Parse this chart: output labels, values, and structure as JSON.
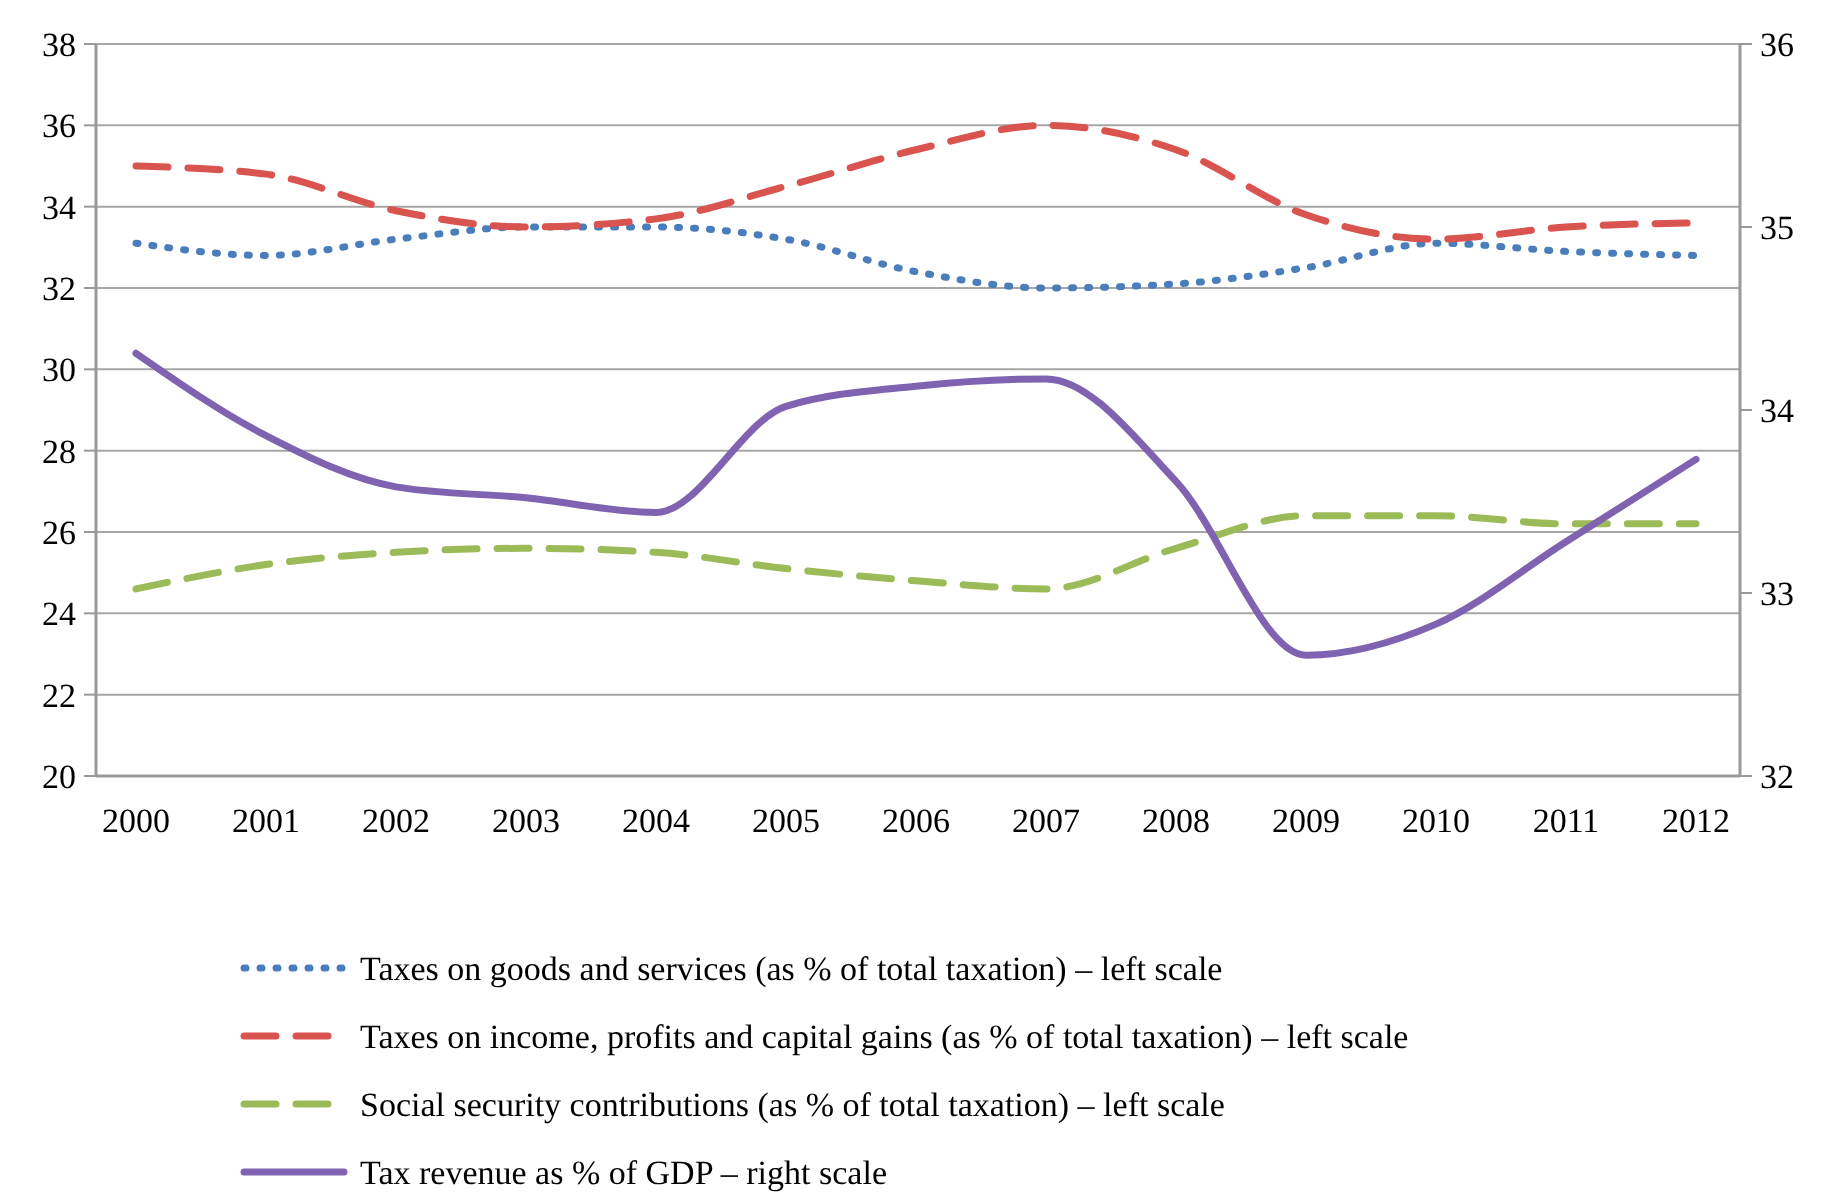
{
  "chart_data": {
    "type": "line",
    "categories": [
      "2000",
      "2001",
      "2002",
      "2003",
      "2004",
      "2005",
      "2006",
      "2007",
      "2008",
      "2009",
      "2010",
      "2011",
      "2012"
    ],
    "series": [
      {
        "name": "Taxes on goods and services  (as % of total taxation) – left scale",
        "color": "#4a7ebb",
        "line_style": "dotted",
        "values": [
          33.1,
          32.8,
          33.2,
          33.5,
          33.5,
          33.2,
          32.4,
          32.0,
          32.1,
          32.5,
          33.1,
          32.9,
          32.8
        ]
      },
      {
        "name": "Taxes on income, profits and capital gains (as % of total taxation) – left scale",
        "color": "#d9534f",
        "line_style": "dashed",
        "values": [
          35.0,
          34.8,
          33.9,
          33.5,
          33.7,
          34.5,
          35.4,
          36.0,
          35.4,
          33.8,
          33.2,
          33.5,
          33.6
        ]
      },
      {
        "name": "Social security contributions  (as % of total taxation) – left scale",
        "color": "#9bbb59",
        "line_style": "dashed",
        "values": [
          24.6,
          25.2,
          25.5,
          25.6,
          25.5,
          25.1,
          24.8,
          24.6,
          25.6,
          26.4,
          26.4,
          26.2,
          26.2
        ]
      },
      {
        "name": "Tax revenue as % of GDP – right scale",
        "color": "#7f63b0",
        "line_style": "solid",
        "axis": "y2",
        "values": [
          34.31,
          33.86,
          33.58,
          33.52,
          33.44,
          34.02,
          34.13,
          34.17,
          33.61,
          32.66,
          32.83,
          33.28,
          33.73
        ]
      }
    ],
    "ylim": [
      20,
      38
    ],
    "yticks": [
      20,
      22,
      24,
      26,
      28,
      30,
      32,
      34,
      36,
      38
    ],
    "y2lim": [
      32,
      36
    ],
    "y2ticks": [
      32,
      33,
      34,
      35,
      36
    ],
    "grid": "y",
    "legend": "bottom",
    "marker": "none"
  }
}
